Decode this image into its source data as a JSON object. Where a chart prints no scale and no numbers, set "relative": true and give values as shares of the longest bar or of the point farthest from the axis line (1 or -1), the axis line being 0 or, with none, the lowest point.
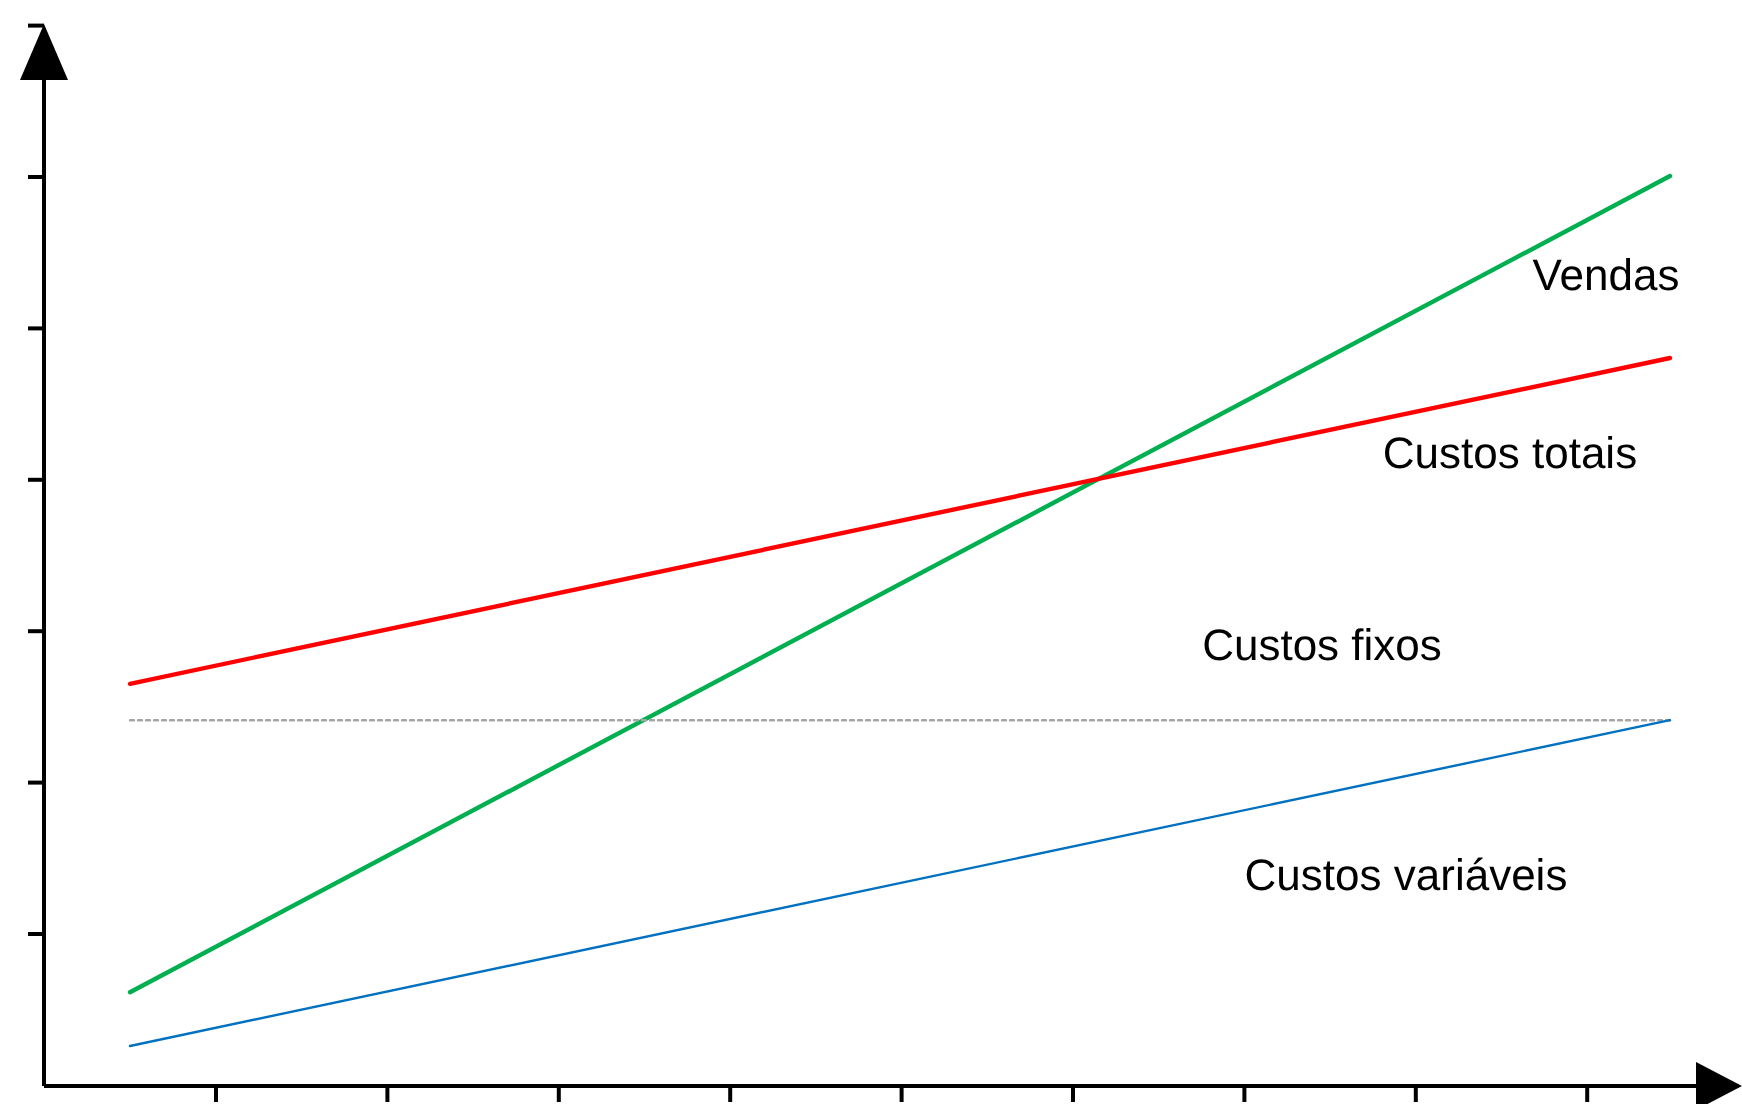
{
  "chart_data": {
    "type": "line",
    "relative": true,
    "categories": [
      null,
      null
    ],
    "marker": "none",
    "series": [
      {
        "name": "Vendas",
        "color": "#00b050",
        "values": [
          0.103,
          1
        ]
      },
      {
        "name": "Custos totais",
        "color": "#ff0000",
        "values": [
          0.442,
          0.8
        ]
      },
      {
        "name": "Custos fixos",
        "color": "#a6a6a6",
        "values": [
          0.402,
          0.402
        ],
        "line_style": "dotted"
      },
      {
        "name": "Custos variáveis",
        "color": "#0070c0",
        "values": [
          0.044,
          0.402
        ]
      }
    ]
  }
}
